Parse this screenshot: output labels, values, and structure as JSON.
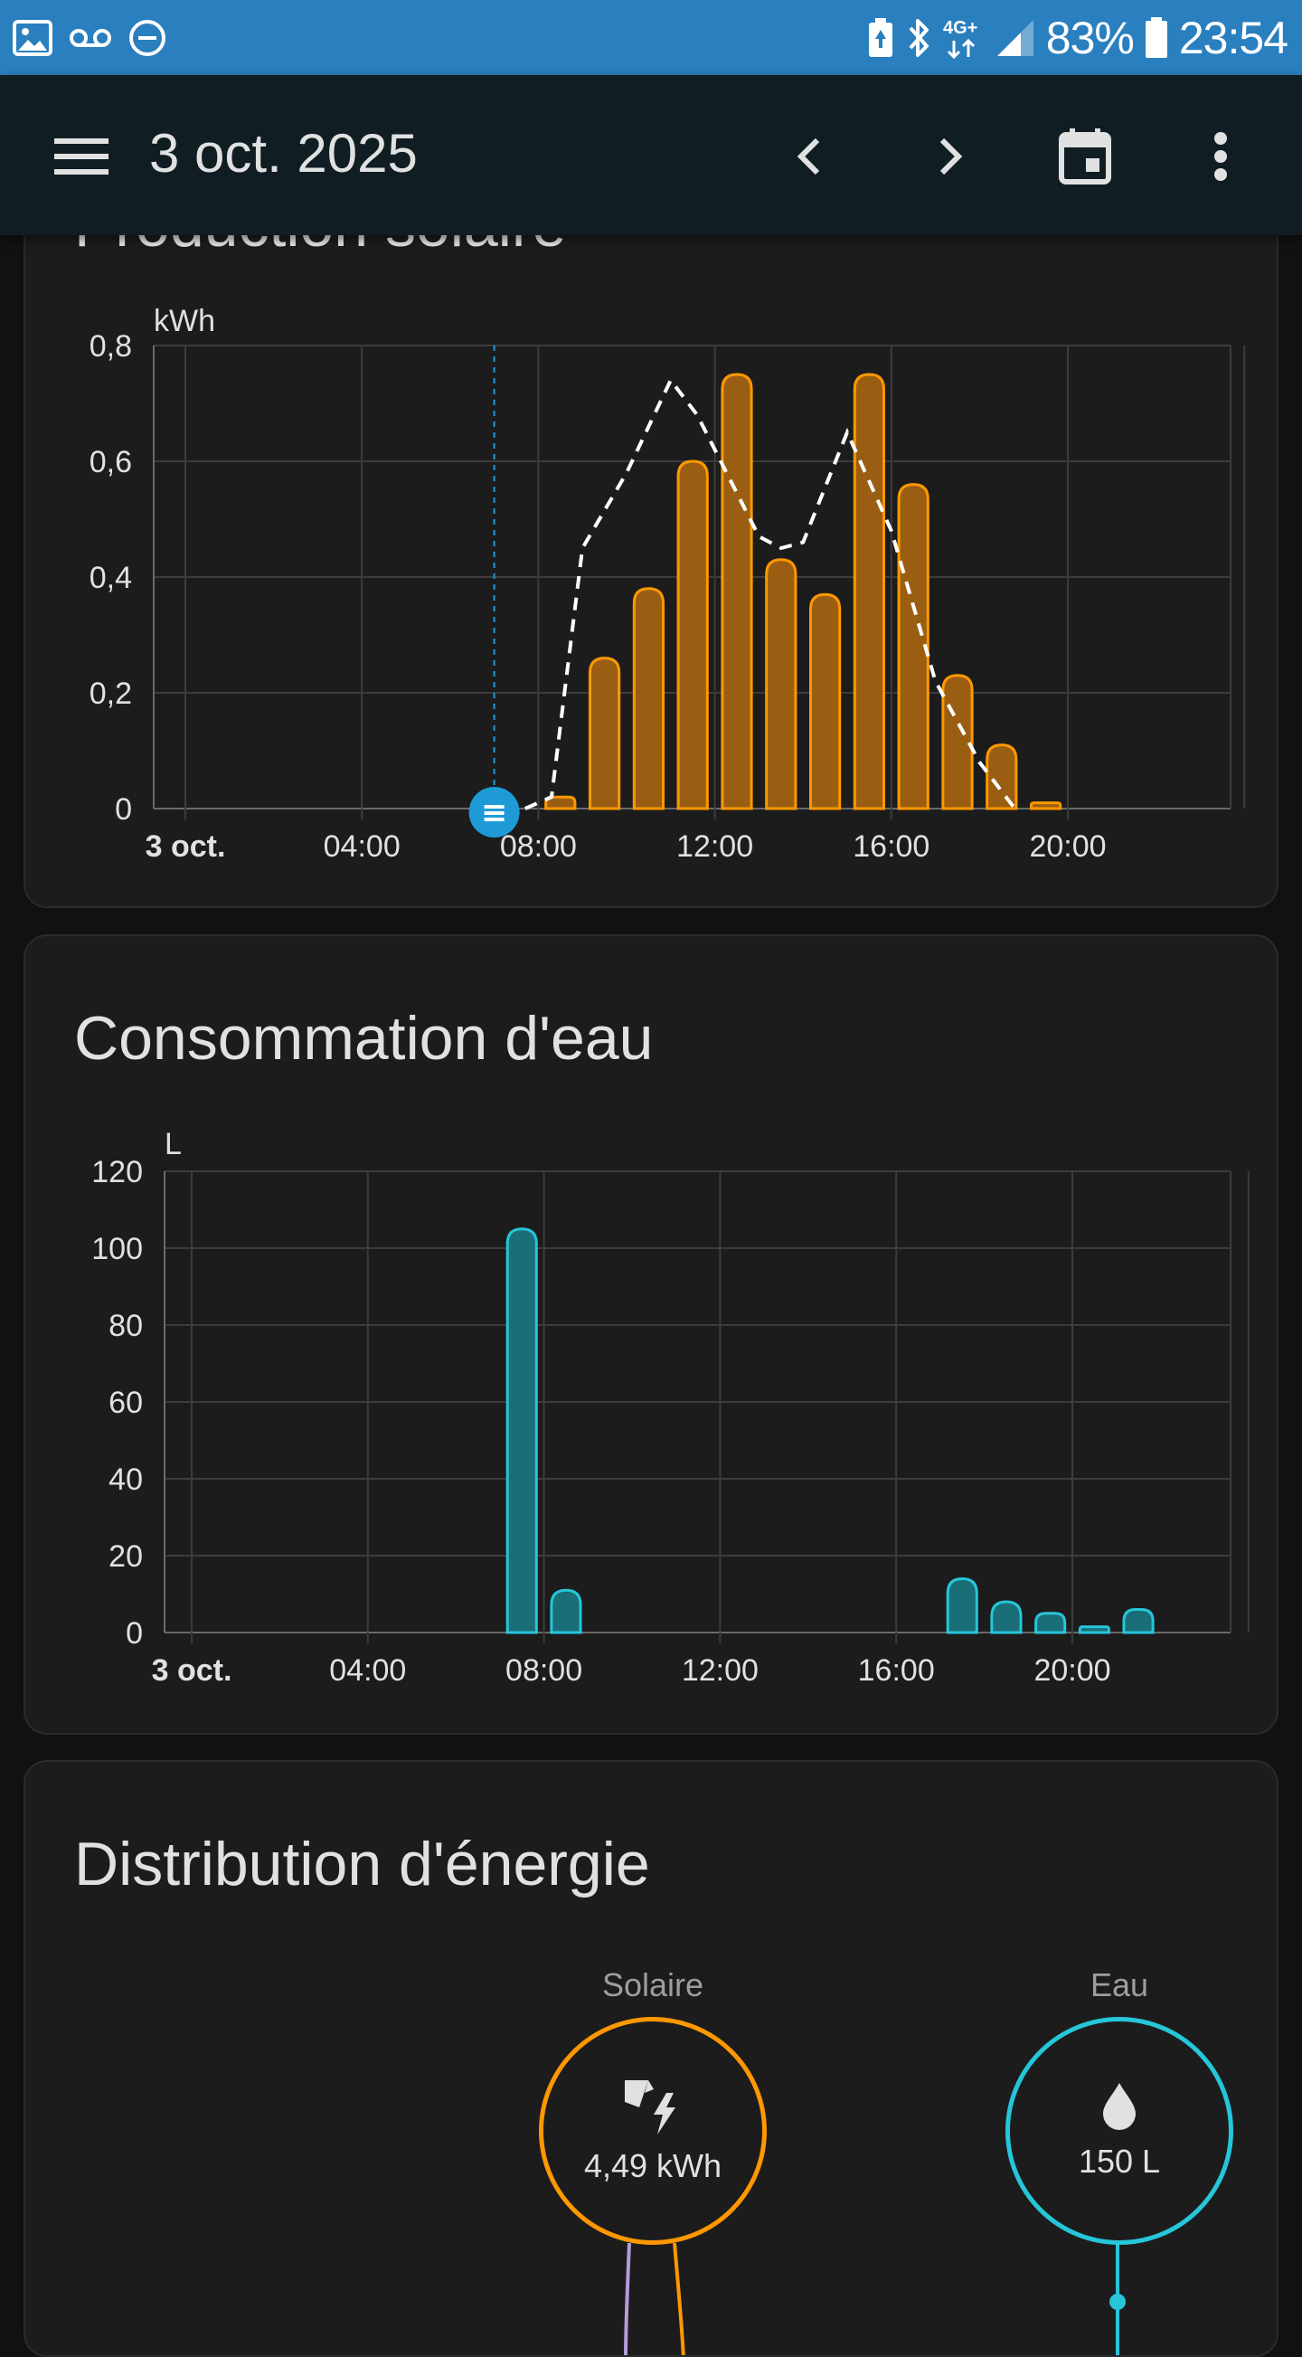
{
  "status_bar": {
    "battery_percent": "83%",
    "time": "23:54",
    "network": "4G+"
  },
  "header": {
    "title": "3 oct. 2025",
    "icons": [
      "menu-icon",
      "chevron-left-icon",
      "chevron-right-icon",
      "calendar-icon",
      "more-vert-icon"
    ]
  },
  "solar_card": {
    "title": "Production solaire",
    "unit": "kWh",
    "accent": "#ff9800"
  },
  "water_card": {
    "title": "Consommation d'eau",
    "unit": "L",
    "accent": "#26c6da"
  },
  "distribution_card": {
    "title": "Distribution d'énergie",
    "solar_label": "Solaire",
    "solar_value": "4,49 kWh",
    "water_label": "Eau",
    "water_value": "150 L"
  },
  "chart_data": [
    {
      "type": "bar",
      "unit": "kWh",
      "x_tick_labels": [
        "3 oct.",
        "04:00",
        "08:00",
        "12:00",
        "16:00",
        "20:00"
      ],
      "y_tick_labels": [
        "0",
        "0,2",
        "0,4",
        "0,6",
        "0,8"
      ],
      "ylim": [
        0,
        0.8
      ],
      "x_hours": [
        8,
        9,
        10,
        11,
        12,
        13,
        14,
        15,
        16,
        17,
        18,
        19
      ],
      "series": [
        {
          "type": "bar",
          "values": [
            0.02,
            0.26,
            0.38,
            0.6,
            0.75,
            0.43,
            0.37,
            0.75,
            0.56,
            0.23,
            0.11,
            0.01
          ]
        },
        {
          "type": "line",
          "style": "dashed",
          "points": [
            [
              7.7,
              0.0
            ],
            [
              8.3,
              0.02
            ],
            [
              9.0,
              0.45
            ],
            [
              10.0,
              0.58
            ],
            [
              11.0,
              0.74
            ],
            [
              11.6,
              0.68
            ],
            [
              12.0,
              0.62
            ],
            [
              13.0,
              0.47
            ],
            [
              13.5,
              0.45
            ],
            [
              14.0,
              0.46
            ],
            [
              15.0,
              0.65
            ],
            [
              16.0,
              0.48
            ],
            [
              17.0,
              0.22
            ],
            [
              18.0,
              0.08
            ],
            [
              18.8,
              0.0
            ]
          ]
        }
      ],
      "current_time_marker_hour": 7.0,
      "grid": true
    },
    {
      "type": "bar",
      "unit": "L",
      "x_tick_labels": [
        "3 oct.",
        "04:00",
        "08:00",
        "12:00",
        "16:00",
        "20:00"
      ],
      "y_tick_labels": [
        "0",
        "20",
        "40",
        "60",
        "80",
        "100",
        "120"
      ],
      "ylim": [
        0,
        120
      ],
      "x_hours": [
        7,
        8,
        17,
        18,
        19,
        20,
        21
      ],
      "values": [
        105,
        11,
        14,
        8,
        5,
        1.5,
        6
      ],
      "grid": true
    }
  ]
}
